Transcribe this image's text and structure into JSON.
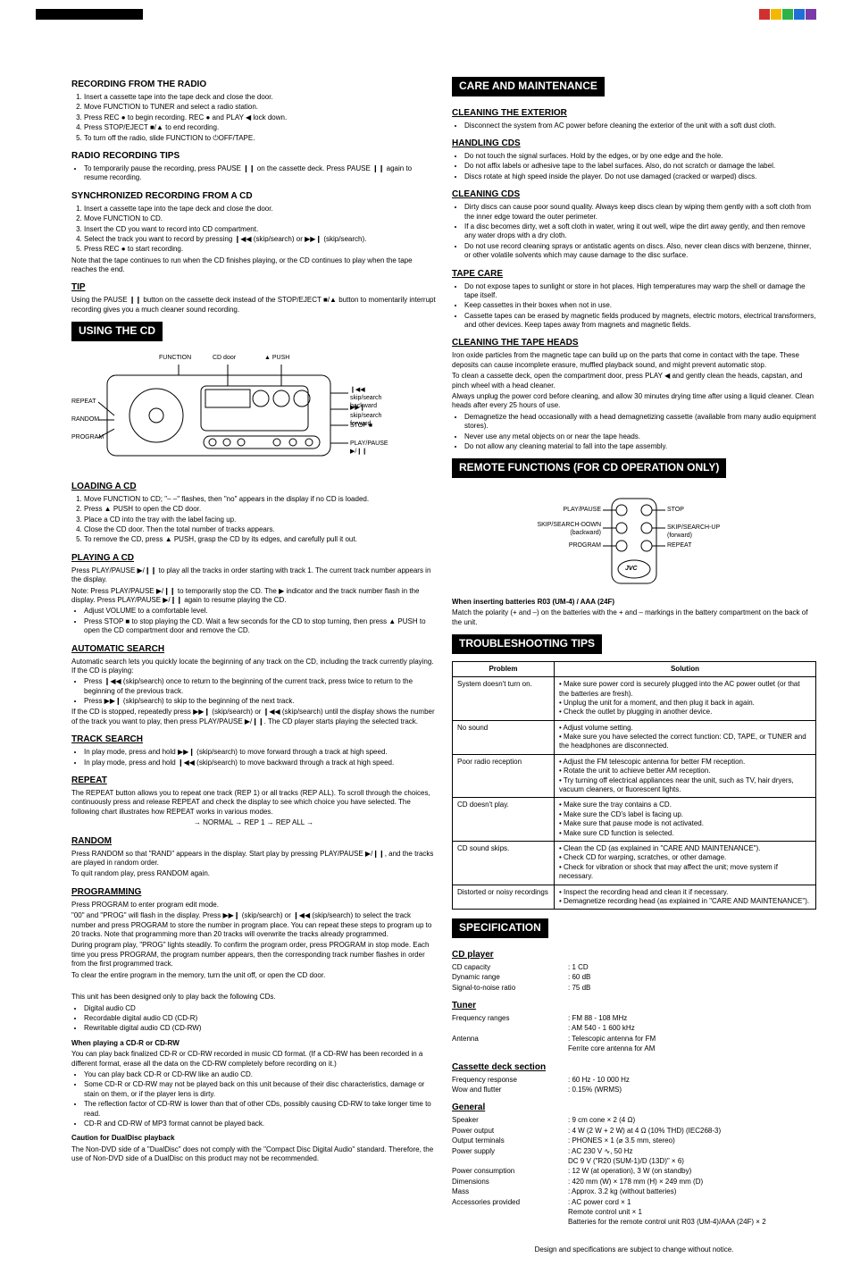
{
  "left": {
    "rec_radio": {
      "title": "RECORDING FROM THE RADIO",
      "steps": [
        "Insert a cassette tape into the tape deck and close the door.",
        "Move FUNCTION to TUNER and select a radio station.",
        "Press REC ● to begin recording. REC ● and PLAY ◀ lock down.",
        "Press STOP/EJECT ■/▲ to end recording.",
        "To turn off the radio, slide FUNCTION to ⏻OFF/TAPE."
      ]
    },
    "rec_tips": {
      "title": "RADIO RECORDING TIPS",
      "items": [
        "To temporarily pause the recording, press PAUSE ❙❙ on the cassette deck. Press PAUSE ❙❙ again to resume recording."
      ]
    },
    "sync_rec": {
      "title": "SYNCHRONIZED RECORDING FROM A CD",
      "steps": [
        "Insert a cassette tape into the tape deck and close the door.",
        "Move FUNCTION to CD.",
        "Insert the CD you want to record into CD compartment.",
        "Select the track you want to record by pressing ❙◀◀ (skip/search) or ▶▶❙ (skip/search).",
        "Press REC ● to start recording."
      ],
      "note": "Note that the tape continues to run when the CD finishes playing, or the CD continues to play when the tape reaches the end."
    },
    "tip": {
      "title": "TIP",
      "body": "Using the PAUSE ❙❙ button on the cassette deck instead of the STOP/EJECT ■/▲ button to momentarily interrupt recording gives you a much cleaner sound recording."
    },
    "using_cd": {
      "header": "USING THE CD",
      "diag": {
        "function": "FUNCTION",
        "cd_door": "CD door",
        "push": "▲ PUSH",
        "skip_back": "❙◀◀ skip/search backward",
        "skip_fwd": "▶▶❙ skip/search forward",
        "stop": "STOP ■",
        "play_pause": "PLAY/PAUSE ▶/❙❙",
        "repeat": "REPEAT",
        "random": "RANDOM",
        "program": "PROGRAM"
      }
    },
    "loading": {
      "title": "LOADING A CD",
      "steps": [
        "Move FUNCTION to CD; \"– –\" flashes, then \"no\" appears in the display if no CD is loaded.",
        "Press ▲ PUSH to open the CD door.",
        "Place a CD into the tray with the label facing up.",
        "Close the CD door. Then the total number of tracks appears.",
        "To remove the CD, press ▲ PUSH, grasp the CD by its edges, and carefully pull it out."
      ]
    },
    "playing": {
      "title": "PLAYING A CD",
      "body": "Press PLAY/PAUSE ▶/❙❙ to play all the tracks in order starting with track 1. The current track number appears in the display.",
      "note": "Note: Press PLAY/PAUSE ▶/❙❙ to temporarily stop the CD. The ▶ indicator and the track number flash in the display. Press PLAY/PAUSE ▶/❙❙ again to resume playing the CD.",
      "items": [
        "Adjust VOLUME to a comfortable level.",
        "Press STOP ■ to stop playing the CD. Wait a few seconds for the CD to stop turning, then press ▲ PUSH to open the CD compartment door and remove the CD."
      ]
    },
    "auto_search": {
      "title": "AUTOMATIC SEARCH",
      "intro": "Automatic search lets you quickly locate the beginning of any track on the CD, including the track currently playing. If the CD is playing:",
      "items": [
        "Press ❙◀◀ (skip/search) once to return to the beginning of the current track, press twice to return to the beginning of the previous track.",
        "Press ▶▶❙ (skip/search) to skip to the beginning of the next track."
      ],
      "after": "If the CD is stopped, repeatedly press ▶▶❙ (skip/search) or ❙◀◀ (skip/search) until the display shows the number of the track you want to play, then press PLAY/PAUSE ▶/❙❙. The CD player starts playing the selected track."
    },
    "track_search": {
      "title": "TRACK SEARCH",
      "items": [
        "In play mode, press and hold ▶▶❙ (skip/search) to move forward through a track at high speed.",
        "In play mode, press and hold ❙◀◀ (skip/search) to move backward through a track at high speed."
      ]
    },
    "repeat": {
      "title": "REPEAT",
      "body": "The REPEAT button allows you to repeat one track (REP 1) or all tracks (REP ALL). To scroll through the choices, continuously press and release REPEAT and check the display to see which choice you have selected. The following chart illustrates how REPEAT works in various modes.",
      "flow": "→ NORMAL → REP 1 → REP ALL →"
    },
    "random": {
      "title": "RANDOM",
      "body": "Press RANDOM so that \"RAND\" appears in the display. Start play by pressing PLAY/PAUSE ▶/❙❙, and the tracks are played in random order.",
      "after": "To quit random play, press RANDOM again."
    },
    "programming": {
      "title": "PROGRAMMING",
      "p1": "Press PROGRAM to enter program edit mode.",
      "p2": "\"00\" and \"PROG\" will flash in the display. Press ▶▶❙ (skip/search) or ❙◀◀ (skip/search) to select the track number and press PROGRAM to store the number in program place. You can repeat these steps to program up to 20 tracks. Note that programming more than 20 tracks will overwrite the tracks already programmed.",
      "p3": "During program play, \"PROG\" lights steadily. To confirm the program order, press PROGRAM in stop mode. Each time you press PROGRAM, the program number appears, then the corresponding track number flashes in order from the first programmed track.",
      "p4": "To clear the entire program in the memory, turn the unit off, or open the CD door.",
      "unit_note": "This unit has been designed only to play back the following CDs.",
      "cd_types": [
        "Digital audio CD",
        "Recordable digital audio CD (CD-R)",
        "Rewritable digital audio CD (CD-RW)"
      ],
      "cdr_title": "When playing a CD-R or CD-RW",
      "cdr_intro": "You can play back finalized CD-R or CD-RW recorded in music CD format. (If a CD-RW has been recorded in a different format, erase all the data on the CD-RW completely before recording on it.)",
      "cdr_items": [
        "You can play back CD-R or CD-RW like an audio CD.",
        "Some CD-R or CD-RW may not be played back on this unit because of their disc characteristics, damage or stain on them, or if the player lens is dirty.",
        "The reflection factor of CD-RW is lower than that of other CDs, possibly causing CD-RW to take longer time to read.",
        "CD-R and CD-RW of MP3 format cannot be played back."
      ],
      "dual_title": "Caution for DualDisc playback",
      "dual_body": "The Non-DVD side of a \"DualDisc\" does not comply with the \"Compact Disc Digital Audio\" standard. Therefore, the use of Non-DVD side of a DualDisc on this product may not be recommended."
    }
  },
  "right": {
    "care": {
      "header": "CARE AND MAINTENANCE",
      "clean_ext": {
        "title": "CLEANING THE EXTERIOR",
        "items": [
          "Disconnect the system from AC power before cleaning the exterior of the unit with a soft dust cloth."
        ]
      },
      "handling": {
        "title": "HANDLING CDS",
        "items": [
          "Do not touch the signal surfaces. Hold by the edges, or by one edge and the hole.",
          "Do not affix labels or adhesive tape to the label surfaces. Also, do not scratch or damage the label.",
          "Discs rotate at high speed inside the player. Do not use damaged (cracked or warped) discs."
        ]
      },
      "clean_cds": {
        "title": "CLEANING CDS",
        "items": [
          "Dirty discs can cause poor sound quality. Always keep discs clean by wiping them gently with a soft cloth from the inner edge toward the outer perimeter.",
          "If a disc becomes dirty, wet a soft cloth in water, wring it out well, wipe the dirt away gently, and then remove any water drops with a dry cloth.",
          "Do not use record cleaning sprays or antistatic agents on discs. Also, never clean discs with benzene, thinner, or other volatile solvents which may cause damage to the disc surface."
        ]
      },
      "tape_care": {
        "title": "TAPE CARE",
        "items": [
          "Do not expose tapes to sunlight or store in hot places. High temperatures may warp the shell or damage the tape itself.",
          "Keep cassettes in their boxes when not in use.",
          "Cassette tapes can be erased by magnetic fields produced by magnets, electric motors, electrical transformers, and other devices. Keep tapes away from magnets and magnetic fields."
        ]
      },
      "clean_heads": {
        "title": "CLEANING THE TAPE HEADS",
        "p1": "Iron oxide particles from the magnetic tape can build up on the parts that come in contact with the tape. These deposits can cause incomplete erasure, muffled playback sound, and might prevent automatic stop.",
        "p2": "To clean a cassette deck, open the compartment door, press PLAY ◀ and gently clean the heads, capstan, and pinch wheel with a head cleaner.",
        "p3": "Always unplug the power cord before cleaning, and allow 30 minutes drying time after using a liquid cleaner. Clean heads after every 25 hours of use.",
        "items": [
          "Demagnetize the head occasionally with a head demagnetizing cassette (available from many audio equipment stores).",
          "Never use any metal objects on or near the tape heads.",
          "Do not allow any cleaning material to fall into the tape assembly."
        ]
      }
    },
    "remote": {
      "header": "REMOTE FUNCTIONS (FOR CD OPERATION ONLY)",
      "labels": {
        "play_pause": "PLAY/PAUSE",
        "stop": "STOP",
        "skip_down": "SKIP/SEARCH-DOWN (backward)",
        "skip_up": "SKIP/SEARCH-UP (forward)",
        "program": "PROGRAM",
        "repeat": "REPEAT",
        "brand": "JVC"
      },
      "battery_title": "When inserting batteries R03 (UM-4) / AAA (24F)",
      "battery_body": "Match the polarity (+ and –) on the batteries with the + and – markings in the battery compartment on the back of the unit."
    },
    "trouble": {
      "header": "TROUBLESHOOTING TIPS",
      "cols": [
        "Problem",
        "Solution"
      ],
      "rows": [
        [
          "System doesn't turn on.",
          "• Make sure power cord is securely plugged into the AC power outlet (or that the batteries are fresh).\n• Unplug the unit for a moment, and then plug it back in again.\n• Check the outlet by plugging in another device."
        ],
        [
          "No sound",
          "• Adjust volume setting.\n• Make sure you have selected the correct function: CD, TAPE, or TUNER and the headphones are disconnected."
        ],
        [
          "Poor radio reception",
          "• Adjust the FM telescopic antenna for better FM reception.\n• Rotate the unit to achieve better AM reception.\n• Try turning off electrical appliances near the unit, such as TV, hair dryers, vacuum cleaners, or fluorescent lights."
        ],
        [
          "CD doesn't play.",
          "• Make sure the tray contains a CD.\n• Make sure the CD's label is facing up.\n• Make sure that pause mode is not activated.\n• Make sure CD function is selected."
        ],
        [
          "CD sound skips.",
          "• Clean the CD (as explained in \"CARE AND MAINTENANCE\").\n• Check CD for warping, scratches, or other damage.\n• Check for vibration or shock that may affect the unit; move system if necessary."
        ],
        [
          "Distorted or noisy recordings",
          "• Inspect the recording head and clean it if necessary.\n• Demagnetize recording head (as explained in \"CARE AND MAINTENANCE\")."
        ]
      ]
    },
    "spec": {
      "header": "SPECIFICATION",
      "cd": {
        "title": "CD player",
        "rows": [
          [
            "CD capacity",
            ": 1 CD"
          ],
          [
            "Dynamic range",
            ": 60 dB"
          ],
          [
            "Signal-to-noise ratio",
            ": 75 dB"
          ]
        ]
      },
      "tuner": {
        "title": "Tuner",
        "rows": [
          [
            "Frequency ranges",
            ": FM 88 - 108 MHz"
          ],
          [
            "",
            ": AM 540 - 1 600 kHz"
          ],
          [
            "Antenna",
            ": Telescopic antenna for FM"
          ],
          [
            "",
            "  Ferrite core antenna for AM"
          ]
        ]
      },
      "cassette": {
        "title": "Cassette deck section",
        "rows": [
          [
            "Frequency response",
            ": 60 Hz - 10 000 Hz"
          ],
          [
            "Wow and flutter",
            ": 0.15% (WRMS)"
          ]
        ]
      },
      "general": {
        "title": "General",
        "rows": [
          [
            "Speaker",
            ": 9 cm cone × 2 (4 Ω)"
          ],
          [
            "Power output",
            ": 4 W (2 W + 2 W) at 4 Ω (10% THD) (IEC268-3)"
          ],
          [
            "Output terminals",
            ": PHONES × 1 (⌀ 3.5 mm, stereo)"
          ],
          [
            "Power supply",
            ": AC 230 V ∿, 50 Hz"
          ],
          [
            "",
            "  DC 9 V (\"R20 (SUM-1)/D (13D)\" × 6)"
          ],
          [
            "Power consumption",
            ": 12 W (at operation), 3 W (on standby)"
          ],
          [
            "Dimensions",
            ": 420 mm (W) × 178 mm (H) × 249 mm (D)"
          ],
          [
            "Mass",
            ": Approx. 3.2 kg (without batteries)"
          ],
          [
            "Accessories provided",
            ": AC power cord × 1"
          ],
          [
            "",
            "  Remote control unit × 1"
          ],
          [
            "",
            "  Batteries for the remote control unit R03 (UM-4)/AAA (24F) × 2"
          ]
        ]
      }
    },
    "footer": "Design and specifications are subject to change without notice."
  },
  "colors": {
    "dec": [
      "#d13030",
      "#f5b800",
      "#2bb34a",
      "#1e6fd6",
      "#7a3aa8"
    ]
  }
}
